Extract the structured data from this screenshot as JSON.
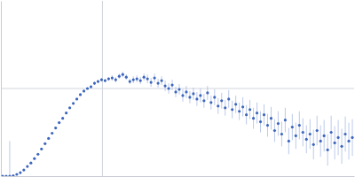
{
  "chart_data": {
    "type": "scatter",
    "x": [
      2,
      6,
      10,
      14,
      18,
      22,
      26,
      30,
      34,
      38,
      42,
      46,
      50,
      54,
      58,
      62,
      66,
      70,
      74,
      78,
      82,
      86,
      90,
      94,
      98,
      102,
      106,
      110,
      114,
      118,
      122,
      126,
      130,
      134,
      138,
      142,
      146,
      150,
      154,
      158,
      162,
      166,
      170,
      174,
      178,
      182,
      186,
      190,
      194,
      198,
      202,
      206,
      210,
      214,
      218,
      222,
      226,
      230,
      234,
      238,
      242,
      246,
      250,
      254,
      258,
      262,
      266,
      270,
      274,
      278,
      282,
      286,
      290,
      294,
      298,
      302,
      306,
      310,
      314,
      318,
      322,
      326,
      330,
      334,
      338,
      342,
      346,
      350,
      354,
      358,
      362,
      366,
      370,
      374,
      378,
      382,
      386,
      390,
      394,
      398
    ],
    "values": [
      0,
      0,
      0,
      0.5,
      2,
      4,
      7,
      11,
      15,
      20,
      25,
      31,
      37,
      43,
      49,
      55,
      61,
      66,
      72,
      78,
      83,
      88,
      93,
      97,
      100,
      102,
      106,
      108,
      110,
      109,
      111,
      112,
      110,
      114,
      116,
      113,
      108,
      110,
      111,
      109,
      113,
      111,
      107,
      112,
      106,
      109,
      103,
      100,
      104,
      96,
      99,
      92,
      96,
      90,
      94,
      88,
      92,
      86,
      95,
      84,
      90,
      80,
      86,
      78,
      88,
      76,
      82,
      74,
      79,
      70,
      76,
      66,
      72,
      62,
      70,
      58,
      66,
      52,
      60,
      48,
      64,
      40,
      56,
      46,
      58,
      50,
      42,
      48,
      36,
      52,
      40,
      46,
      30,
      50,
      38,
      44,
      34,
      48,
      40,
      44
    ],
    "errors": [
      1,
      1,
      40,
      1,
      1,
      1,
      1,
      1,
      1,
      1,
      1,
      1,
      1,
      1,
      1,
      1,
      1,
      1,
      1,
      1,
      1,
      1,
      1,
      1,
      1,
      2,
      2,
      2,
      2,
      2,
      2,
      3,
      3,
      3,
      3,
      3,
      3,
      4,
      4,
      4,
      4,
      5,
      5,
      5,
      5,
      5,
      6,
      6,
      6,
      6,
      6,
      7,
      7,
      7,
      7,
      8,
      8,
      8,
      8,
      8,
      9,
      9,
      9,
      9,
      10,
      10,
      10,
      10,
      11,
      11,
      11,
      12,
      12,
      12,
      12,
      13,
      13,
      13,
      14,
      14,
      14,
      15,
      15,
      15,
      16,
      16,
      16,
      17,
      17,
      17,
      18,
      18,
      18,
      19,
      19,
      20,
      20,
      20,
      21,
      21
    ],
    "color": "#3d66bd",
    "xlim": [
      0,
      400
    ],
    "ylim": [
      0,
      200
    ],
    "xticks": [
      115
    ],
    "yticks": [
      100
    ],
    "grid": true,
    "tick_labels": false,
    "marker": "circle"
  }
}
